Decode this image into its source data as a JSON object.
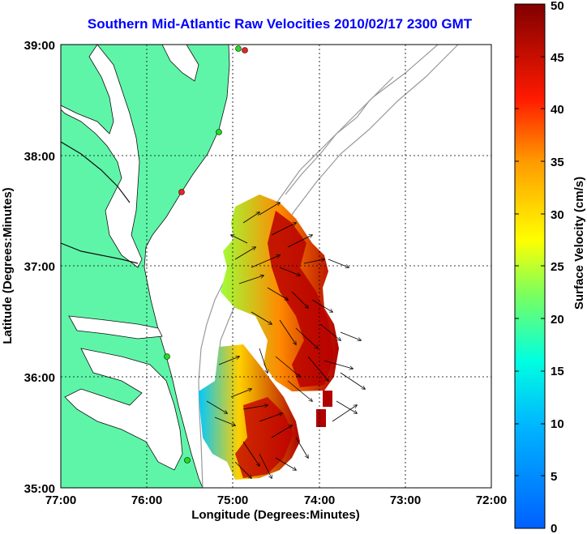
{
  "title": "Southern Mid-Atlantic Raw Velocities 2010/02/17 2300 GMT",
  "x_axis": {
    "label": "Longitude (Degrees:Minutes)",
    "ticks": [
      "77:00",
      "76:00",
      "75:00",
      "74:00",
      "73:00",
      "72:00"
    ]
  },
  "y_axis": {
    "label": "Latitude (Degrees:Minutes)",
    "ticks": [
      "39:00",
      "38:00",
      "37:00",
      "36:00",
      "35:00"
    ]
  },
  "colorbar": {
    "label": "Surface Velocity (cm/s)",
    "ticks": [
      "0",
      "5",
      "10",
      "15",
      "20",
      "25",
      "30",
      "35",
      "40",
      "45",
      "50"
    ],
    "min": 0,
    "max": 50
  },
  "colors": {
    "land": "#5ff5a8",
    "title": "#0000ff",
    "station_green": "#22dd22",
    "station_red": "#ee2222"
  },
  "chart_data": {
    "type": "heatmap",
    "title": "Southern Mid-Atlantic Raw Velocities 2010/02/17 2300 GMT",
    "xlabel": "Longitude (Degrees:Minutes)",
    "ylabel": "Latitude (Degrees:Minutes)",
    "xlim": [
      "77:00",
      "72:00"
    ],
    "ylim": [
      "35:00",
      "39:00"
    ],
    "grid": true,
    "colorbar_label": "Surface Velocity (cm/s)",
    "colorbar_range": [
      0,
      50
    ]
  }
}
